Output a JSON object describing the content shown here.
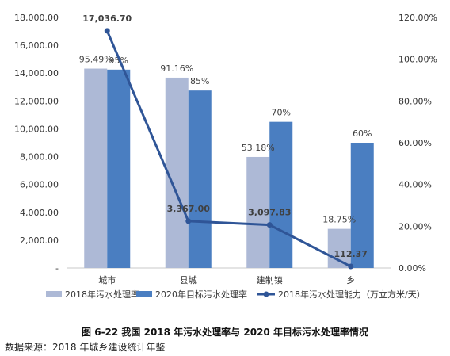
{
  "chart_data": {
    "type": "bar",
    "categories": [
      "城市",
      "县城",
      "建制镇",
      "乡"
    ],
    "series": [
      {
        "name": "2018年污水处理率",
        "kind": "bar",
        "axis": "right",
        "color": "#adb9d6",
        "values": [
          95.49,
          91.16,
          53.18,
          18.75
        ],
        "labels": [
          "95.49%",
          "91.16%",
          "53.18%",
          "18.75%"
        ]
      },
      {
        "name": "2020年目标污水处理率",
        "kind": "bar",
        "axis": "right",
        "color": "#4a7ec1",
        "values": [
          95,
          85,
          70,
          60
        ],
        "labels": [
          "95%",
          "85%",
          "70%",
          "60%"
        ]
      },
      {
        "name": "2018年污水处理能力（万立方米/天）",
        "kind": "line",
        "axis": "left",
        "color": "#2f5597",
        "values": [
          17036.7,
          3367.0,
          3097.83,
          112.37
        ],
        "labels": [
          "17,036.70",
          "3,367.00",
          "3,097.83",
          "112.37"
        ]
      }
    ],
    "y_left": {
      "min": 0,
      "max": 18000,
      "ticks": [
        "-",
        "2,000.00",
        "4,000.00",
        "6,000.00",
        "8,000.00",
        "10,000.00",
        "12,000.00",
        "14,000.00",
        "16,000.00",
        "18,000.00"
      ]
    },
    "y_right": {
      "min": 0,
      "max": 120,
      "ticks": [
        "0.00%",
        "20.00%",
        "40.00%",
        "60.00%",
        "80.00%",
        "100.00%",
        "120.00%"
      ]
    },
    "grid": false,
    "legend_position": "bottom"
  },
  "caption": "图 6-22  我国 2018 年污水处理率与 2020 年目标污水处理率情况",
  "source": "数据来源：2018 年城乡建设统计年鉴"
}
